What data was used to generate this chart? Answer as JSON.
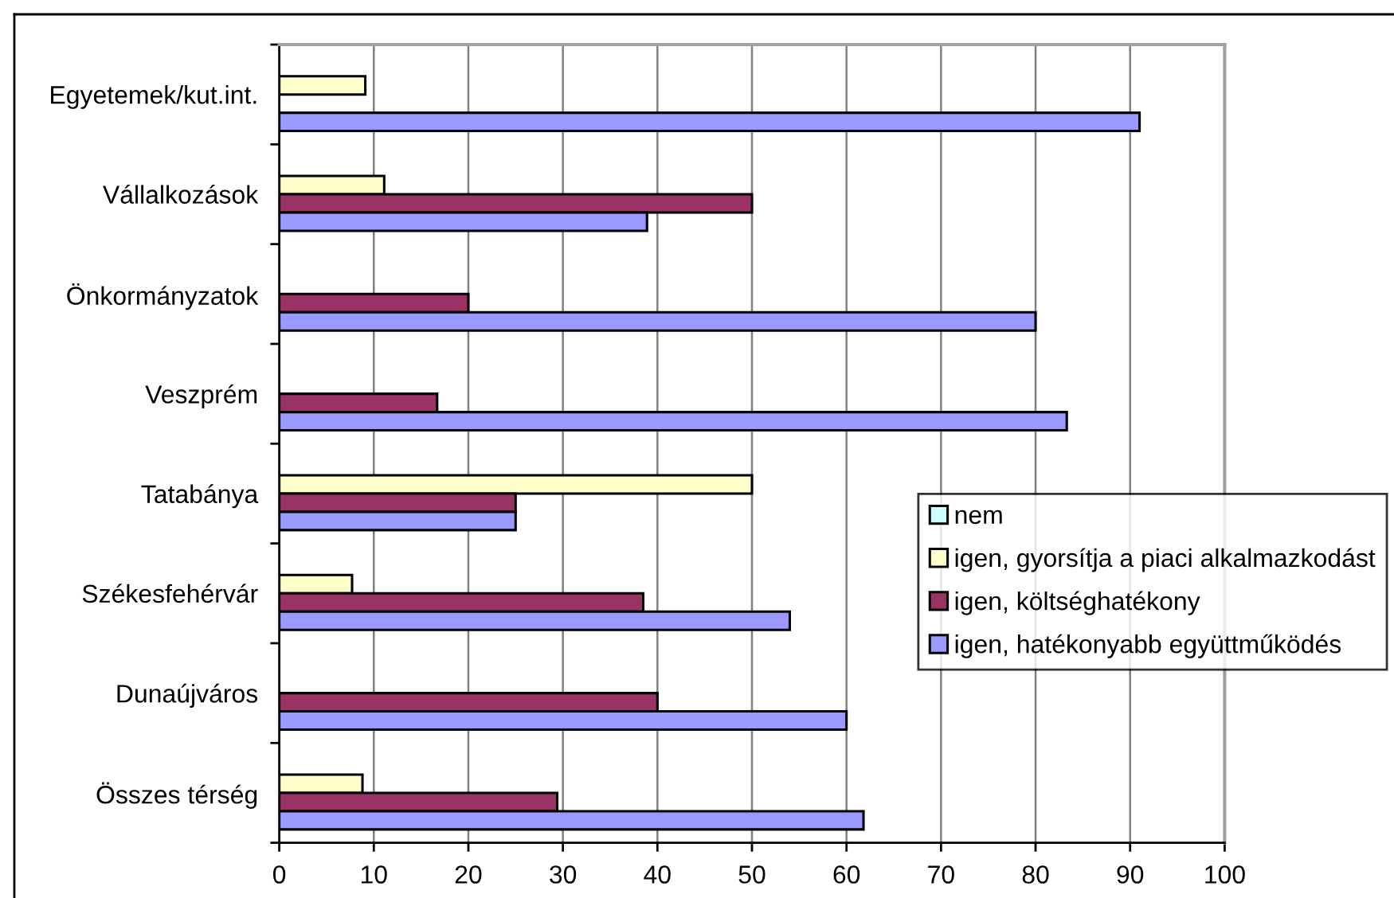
{
  "chart_data": {
    "type": "bar",
    "orientation": "horizontal",
    "categories": [
      "Egyetemek/kut.int.",
      "Vállalkozások",
      "Önkormányzatok",
      "Veszprém",
      "Tatabánya",
      "Székesfehérvár",
      "Dunaújváros",
      "Összes térség"
    ],
    "series": [
      {
        "name": "nem",
        "color": "#ccffff",
        "values": [
          null,
          null,
          null,
          null,
          null,
          null,
          null,
          null
        ]
      },
      {
        "name": "igen, gyorsítja a piaci alkalmazkodást",
        "color": "#ffffcc",
        "values": [
          9.1,
          11.1,
          null,
          null,
          50,
          7.7,
          null,
          8.8
        ]
      },
      {
        "name": "igen, költséghatékony",
        "color": "#993366",
        "values": [
          null,
          50,
          20,
          16.7,
          25,
          38.5,
          40,
          29.4
        ]
      },
      {
        "name": "igen, hatékonyabb együttműködés",
        "color": "#9999ff",
        "values": [
          91,
          38.9,
          80,
          83.3,
          25,
          54,
          60,
          61.8
        ]
      }
    ],
    "xlim": [
      0,
      100
    ],
    "xticks": [
      0,
      10,
      20,
      30,
      40,
      50,
      60,
      70,
      80,
      90,
      100
    ],
    "grid": "x",
    "legend": "right"
  }
}
